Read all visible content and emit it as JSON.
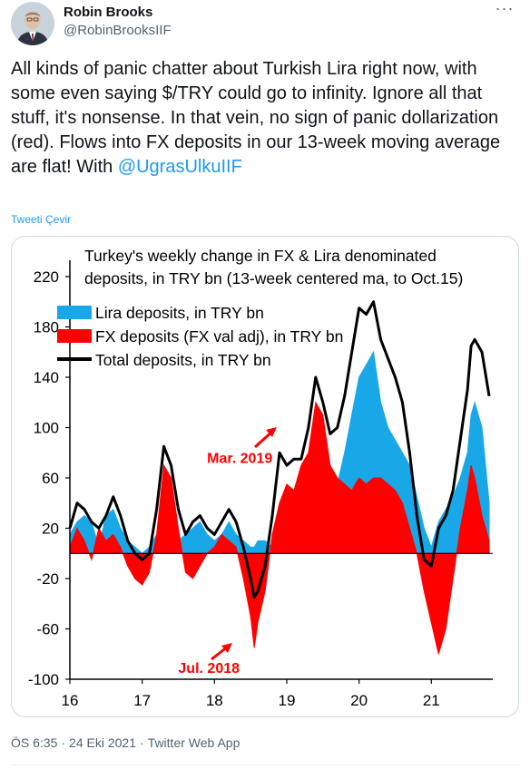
{
  "author": {
    "name": "Robin Brooks",
    "handle": "@RobinBrooksIIF"
  },
  "tweet": {
    "text": "All kinds of panic chatter about Turkish Lira right now, with some even saying $/TRY could go to infinity. Ignore all that stuff, it's nonsense. In that vein, no sign of panic dollarization (red). Flows into FX deposits in our 13-week moving average are flat! With ",
    "mention": "@UgrasUlkuIIF",
    "translate_label": "Tweeti Çevir"
  },
  "meta": {
    "time": "ÖS 6:35",
    "date": "24 Eki 2021",
    "source": "Twitter Web App"
  },
  "colors": {
    "lira": "#18a8e8",
    "fx": "#ff0000",
    "total": "#000000",
    "link": "#1d9bf0"
  },
  "chart_data": {
    "type": "area",
    "title": "Turkey's weekly change in FX & Lira denominated deposits, in TRY bn (13-week centered ma, to Oct.15)",
    "title_lines": [
      "Turkey's weekly change in FX & Lira denominated",
      "deposits, in TRY bn (13-week centered ma, to Oct.15)"
    ],
    "xlabel": "",
    "ylabel": "",
    "ylim": [
      -100,
      220
    ],
    "xlim": [
      16,
      21.85
    ],
    "grid": false,
    "legend_position": "top-left",
    "x_ticks": [
      "16",
      "17",
      "18",
      "19",
      "20",
      "21"
    ],
    "y_ticks": [
      "220",
      "180",
      "140",
      "100",
      "60",
      "20",
      "-20",
      "-60",
      "-100"
    ],
    "y_tick_values": [
      220,
      180,
      140,
      100,
      60,
      20,
      -20,
      -60,
      -100
    ],
    "annotations": [
      {
        "text": "Mar. 2019",
        "x": 18.35,
        "y": 72
      },
      {
        "text": "Jul. 2018",
        "x": 18.3,
        "y": -92
      }
    ],
    "x": [
      16.0,
      16.1,
      16.2,
      16.3,
      16.4,
      16.5,
      16.6,
      16.7,
      16.8,
      16.9,
      17.0,
      17.1,
      17.2,
      17.3,
      17.4,
      17.5,
      17.6,
      17.7,
      17.8,
      17.9,
      18.0,
      18.1,
      18.2,
      18.3,
      18.4,
      18.5,
      18.55,
      18.6,
      18.7,
      18.8,
      18.9,
      19.0,
      19.1,
      19.2,
      19.3,
      19.4,
      19.5,
      19.6,
      19.7,
      19.8,
      19.9,
      20.0,
      20.1,
      20.2,
      20.3,
      20.4,
      20.5,
      20.6,
      20.7,
      20.8,
      20.9,
      21.0,
      21.1,
      21.2,
      21.3,
      21.4,
      21.5,
      21.55,
      21.6,
      21.7,
      21.8
    ],
    "series": [
      {
        "name": "Lira deposits, in TRY bn",
        "values": [
          15,
          25,
          30,
          25,
          5,
          30,
          35,
          20,
          10,
          5,
          0,
          5,
          15,
          25,
          20,
          10,
          15,
          20,
          25,
          15,
          10,
          15,
          25,
          15,
          10,
          5,
          5,
          10,
          10,
          5,
          15,
          25,
          30,
          20,
          30,
          40,
          30,
          40,
          55,
          80,
          110,
          140,
          150,
          160,
          120,
          100,
          90,
          80,
          70,
          45,
          20,
          5,
          25,
          35,
          45,
          60,
          80,
          110,
          120,
          100,
          40
        ]
      },
      {
        "name": "FX deposits (FX val adj), in TRY bn",
        "values": [
          5,
          20,
          10,
          -5,
          20,
          10,
          15,
          5,
          -10,
          -20,
          -25,
          -15,
          15,
          70,
          60,
          20,
          -15,
          -20,
          -10,
          0,
          5,
          15,
          10,
          5,
          -20,
          -50,
          -75,
          -55,
          -30,
          15,
          40,
          55,
          50,
          70,
          80,
          120,
          110,
          70,
          60,
          55,
          50,
          60,
          55,
          60,
          60,
          55,
          50,
          40,
          20,
          0,
          -30,
          -55,
          -80,
          -60,
          -20,
          20,
          50,
          70,
          60,
          30,
          10
        ]
      },
      {
        "name": "Total deposits, in TRY bn",
        "values": [
          20,
          40,
          35,
          25,
          20,
          30,
          45,
          30,
          10,
          0,
          -5,
          0,
          35,
          85,
          70,
          35,
          15,
          25,
          30,
          20,
          15,
          25,
          35,
          25,
          5,
          -20,
          -35,
          -30,
          -10,
          30,
          80,
          70,
          75,
          75,
          100,
          140,
          120,
          95,
          100,
          125,
          160,
          195,
          190,
          200,
          170,
          155,
          140,
          120,
          80,
          30,
          -5,
          -10,
          20,
          30,
          50,
          90,
          130,
          165,
          170,
          160,
          125
        ]
      }
    ]
  }
}
